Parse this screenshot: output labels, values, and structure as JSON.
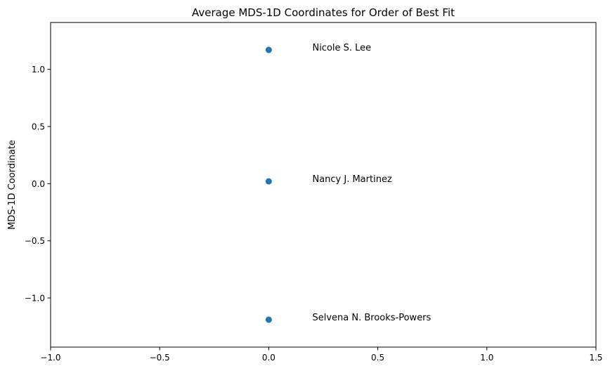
{
  "chart_data": {
    "type": "scatter",
    "title": "Average MDS-1D Coordinates for Order of Best Fit",
    "xlabel": "",
    "ylabel": "MDS-1D Coordinate",
    "xlim": [
      -1.0,
      1.5
    ],
    "ylim": [
      -1.43,
      1.41
    ],
    "x_ticks": [
      -1.0,
      -0.5,
      0.0,
      0.5,
      1.0,
      1.5
    ],
    "x_tick_labels": [
      "−1.0",
      "−0.5",
      "0.0",
      "0.5",
      "1.0",
      "1.5"
    ],
    "y_ticks": [
      -1.0,
      -0.5,
      0.0,
      0.5,
      1.0
    ],
    "y_tick_labels": [
      "−1.0",
      "−0.5",
      "0.0",
      "0.5",
      "1.0"
    ],
    "grid": false,
    "marker_color": "#1f77b4",
    "label_offset_x": 0.2,
    "points": [
      {
        "label": "Nicole S. Lee",
        "x": 0.0,
        "y": 1.17
      },
      {
        "label": "Nancy J. Martinez",
        "x": 0.0,
        "y": 0.02
      },
      {
        "label": "Selvena N. Brooks-Powers",
        "x": 0.0,
        "y": -1.19
      }
    ]
  }
}
